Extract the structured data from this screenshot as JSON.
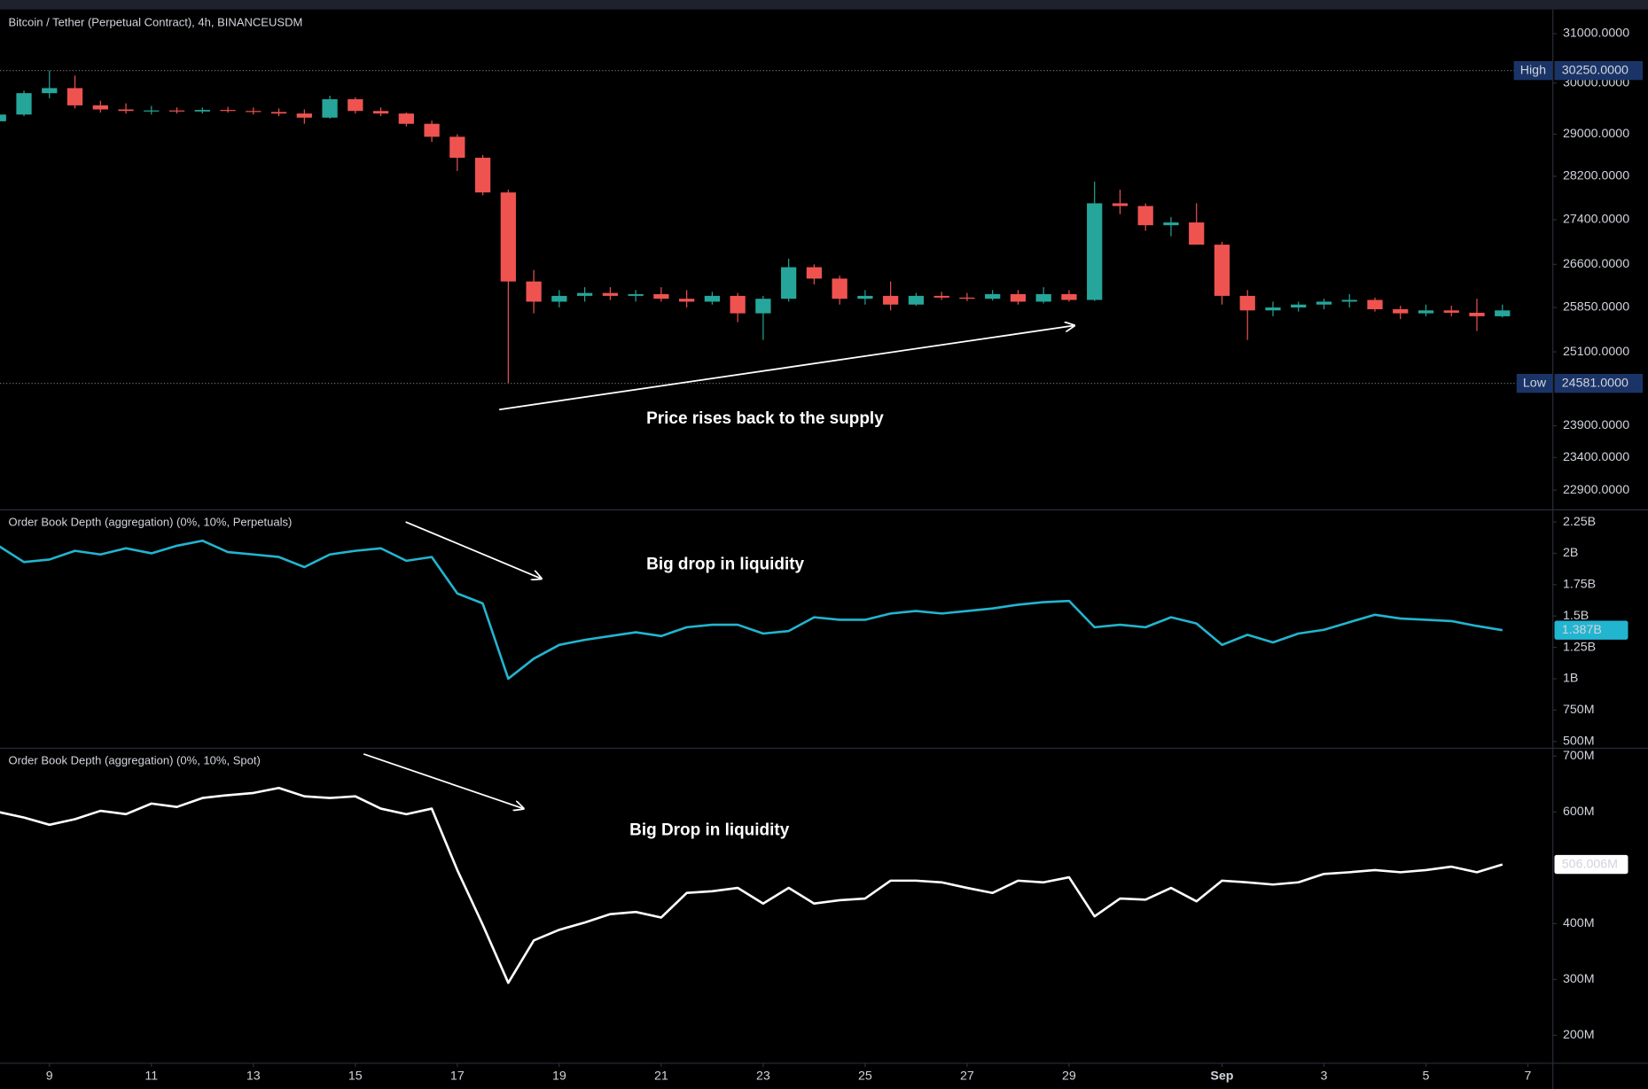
{
  "chart_data": [
    {
      "type": "candlestick",
      "title": "Bitcoin / Tether (Perpetual Contract), 4h, BINANCEUSDM",
      "annotation": "Price rises back to the supply",
      "x": [
        8,
        8.5,
        9,
        9.5,
        10,
        10.5,
        11,
        11.5,
        12,
        12.5,
        13,
        13.5,
        14,
        14.5,
        15,
        15.5,
        16,
        16.5,
        17,
        17.5,
        18,
        18.5,
        19,
        19.5,
        20,
        20.5,
        21,
        21.5,
        22,
        22.5,
        23,
        23.5,
        24,
        24.5,
        25,
        25.5,
        26,
        26.5,
        27,
        27.5,
        28,
        28.5,
        29,
        29.5,
        30,
        30.5,
        31,
        31.5,
        32,
        32.5,
        33,
        33.5,
        34,
        34.5,
        35,
        35.5,
        36,
        36.5,
        37,
        37.5
      ],
      "open": [
        29250,
        29380,
        29800,
        29900,
        29560,
        29480,
        29450,
        29460,
        29440,
        29470,
        29450,
        29430,
        29400,
        29320,
        29680,
        29450,
        29400,
        29200,
        28950,
        28550,
        27900,
        26300,
        25950,
        26050,
        26100,
        26050,
        26080,
        26000,
        25950,
        26050,
        25750,
        26000,
        26550,
        26350,
        26000,
        26050,
        25900,
        26050,
        26020,
        26000,
        26080,
        25950,
        26080,
        25980,
        27700,
        27650,
        27300,
        27350,
        26950,
        26050,
        25800,
        25850,
        25900,
        25950,
        25980,
        25820,
        25750,
        25800,
        25760,
        25700
      ],
      "high": [
        29420,
        29850,
        30250,
        30150,
        29650,
        29600,
        29550,
        29520,
        29520,
        29530,
        29520,
        29500,
        29480,
        29750,
        29720,
        29520,
        29420,
        29260,
        29000,
        28600,
        27950,
        26500,
        26150,
        26200,
        26200,
        26150,
        26200,
        26150,
        26120,
        26100,
        26050,
        26700,
        26600,
        26400,
        26150,
        26300,
        26100,
        26120,
        26100,
        26150,
        26150,
        26200,
        26150,
        28100,
        27950,
        27700,
        27450,
        27700,
        27000,
        26150,
        25950,
        25950,
        26000,
        26080,
        26020,
        25880,
        25900,
        25880,
        26000,
        25900
      ],
      "low": [
        29200,
        29350,
        29700,
        29500,
        29420,
        29400,
        29380,
        29400,
        29400,
        29420,
        29380,
        29350,
        29200,
        29300,
        29400,
        29350,
        29150,
        28850,
        28300,
        27850,
        24581,
        25750,
        25850,
        25950,
        25980,
        25950,
        25950,
        25850,
        25900,
        25600,
        25300,
        25950,
        26250,
        25900,
        25900,
        25800,
        25880,
        25980,
        25960,
        25970,
        25900,
        25920,
        25950,
        25960,
        27500,
        27200,
        27100,
        27000,
        25900,
        25300,
        25700,
        25780,
        25820,
        25850,
        25780,
        25650,
        25700,
        25700,
        25450,
        25680
      ],
      "close": [
        29380,
        29800,
        29900,
        29560,
        29480,
        29450,
        29460,
        29440,
        29470,
        29450,
        29430,
        29400,
        29320,
        29680,
        29450,
        29400,
        29200,
        28950,
        28550,
        27900,
        26300,
        25950,
        26050,
        26100,
        26050,
        26080,
        26000,
        25950,
        26050,
        25750,
        26000,
        26550,
        26350,
        26000,
        26050,
        25900,
        26050,
        26020,
        26000,
        26080,
        25950,
        26080,
        25980,
        27700,
        27650,
        27300,
        27350,
        26950,
        26050,
        25800,
        25850,
        25900,
        25950,
        25980,
        25820,
        25750,
        25800,
        25760,
        25700,
        25800
      ],
      "up_color": "#26a69a",
      "down_color": "#ef5350",
      "log": true,
      "xlim": [
        8.03,
        38.48
      ],
      "ylim": [
        22610,
        31480
      ],
      "yticks": [
        {
          "value": 31000,
          "label": "31000.0000"
        },
        {
          "value": 30000,
          "label": "30000.0000"
        },
        {
          "value": 29000,
          "label": "29000.0000"
        },
        {
          "value": 28200,
          "label": "28200.0000"
        },
        {
          "value": 27400,
          "label": "27400.0000"
        },
        {
          "value": 26600,
          "label": "26600.0000"
        },
        {
          "value": 25850,
          "label": "25850.0000"
        },
        {
          "value": 25100,
          "label": "25100.0000"
        },
        {
          "value": 23900,
          "label": "23900.0000"
        },
        {
          "value": 23400,
          "label": "23400.0000"
        },
        {
          "value": 22900,
          "label": "22900.0000"
        }
      ],
      "markers": [
        {
          "name": "High",
          "value": 30250,
          "value_label": "30250.0000"
        },
        {
          "name": "Low",
          "value": 24581,
          "value_label": "24581.0000"
        }
      ]
    },
    {
      "type": "line",
      "title": "Order Book Depth (aggregation) (0%, 10%, Perpetuals)",
      "annotation": "Big drop in liquidity",
      "color": "#22b5d0",
      "x": [
        8,
        8.5,
        9,
        9.5,
        10,
        10.5,
        11,
        11.5,
        12,
        12.5,
        13,
        13.5,
        14,
        14.5,
        15,
        15.5,
        16,
        16.5,
        17,
        17.5,
        18,
        18.5,
        19,
        19.5,
        20,
        20.5,
        21,
        21.5,
        22,
        22.5,
        23,
        23.5,
        24,
        24.5,
        25,
        25.5,
        26,
        26.5,
        27,
        27.5,
        28,
        28.5,
        29,
        29.5,
        30,
        30.5,
        31,
        31.5,
        32,
        32.5,
        33,
        33.5,
        34,
        34.5,
        35,
        35.5,
        36,
        36.5,
        37,
        37.5
      ],
      "values": [
        2060000000,
        1930000000,
        1950000000,
        2020000000,
        1990000000,
        2040000000,
        2000000000,
        2060000000,
        2100000000,
        2010000000,
        1990000000,
        1970000000,
        1890000000,
        1990000000,
        2020000000,
        2040000000,
        1940000000,
        1970000000,
        1680000000,
        1600000000,
        1000000000,
        1160000000,
        1270000000,
        1310000000,
        1340000000,
        1370000000,
        1340000000,
        1410000000,
        1430000000,
        1430000000,
        1360000000,
        1380000000,
        1490000000,
        1470000000,
        1470000000,
        1520000000,
        1540000000,
        1520000000,
        1540000000,
        1560000000,
        1590000000,
        1610000000,
        1620000000,
        1410000000,
        1430000000,
        1410000000,
        1490000000,
        1440000000,
        1270000000,
        1350000000,
        1290000000,
        1360000000,
        1390000000,
        1450000000,
        1510000000,
        1480000000,
        1470000000,
        1460000000,
        1420000000,
        1387000000
      ],
      "last_label": {
        "value": 1387000000,
        "label": "1.387B"
      },
      "xlim": [
        8.03,
        38.48
      ],
      "ylim": [
        450000000,
        2342000000
      ],
      "yticks": [
        {
          "value": 2250000000,
          "label": "2.25B"
        },
        {
          "value": 2000000000,
          "label": "2B"
        },
        {
          "value": 1750000000,
          "label": "1.75B"
        },
        {
          "value": 1500000000,
          "label": "1.5B"
        },
        {
          "value": 1250000000,
          "label": "1.25B"
        },
        {
          "value": 1000000000,
          "label": "1B"
        },
        {
          "value": 750000000,
          "label": "750M"
        },
        {
          "value": 500000000,
          "label": "500M"
        }
      ]
    },
    {
      "type": "line",
      "title": "Order Book Depth (aggregation) (0%, 10%, Spot)",
      "annotation": "Big Drop in liquidity",
      "color": "#ffffff",
      "x": [
        8,
        8.5,
        9,
        9.5,
        10,
        10.5,
        11,
        11.5,
        12,
        12.5,
        13,
        13.5,
        14,
        14.5,
        15,
        15.5,
        16,
        16.5,
        17,
        17.5,
        18,
        18.5,
        19,
        19.5,
        20,
        20.5,
        21,
        21.5,
        22,
        22.5,
        23,
        23.5,
        24,
        24.5,
        25,
        25.5,
        26,
        26.5,
        27,
        27.5,
        28,
        28.5,
        29,
        29.5,
        30,
        30.5,
        31,
        31.5,
        32,
        32.5,
        33,
        33.5,
        34,
        34.5,
        35,
        35.5,
        36,
        36.5,
        37,
        37.5
      ],
      "values": [
        600000000,
        590000000,
        577000000,
        587000000,
        602000000,
        596000000,
        615000000,
        609000000,
        625000000,
        630000000,
        634000000,
        643000000,
        628000000,
        625000000,
        628000000,
        606000000,
        596000000,
        606000000,
        496000000,
        398000000,
        294000000,
        370000000,
        389000000,
        402000000,
        417000000,
        421000000,
        411000000,
        455000000,
        458000000,
        464000000,
        436000000,
        464000000,
        436000000,
        442000000,
        445000000,
        477000000,
        477000000,
        474000000,
        464000000,
        455000000,
        477000000,
        474000000,
        483000000,
        413000000,
        445000000,
        443000000,
        464000000,
        440000000,
        477000000,
        474000000,
        470000000,
        474000000,
        489000000,
        492000000,
        496000000,
        492000000,
        496000000,
        502000000,
        492000000,
        506006000
      ],
      "last_label": {
        "value": 506006000,
        "label": "506.006M"
      },
      "xlim": [
        8.03,
        38.48
      ],
      "ylim": [
        150900000,
        713200000
      ],
      "yticks": [
        {
          "value": 700000000,
          "label": "700M"
        },
        {
          "value": 600000000,
          "label": "600M"
        },
        {
          "value": 400000000,
          "label": "400M"
        },
        {
          "value": 300000000,
          "label": "300M"
        },
        {
          "value": 200000000,
          "label": "200M"
        }
      ],
      "xticks": [
        9,
        11,
        13,
        15,
        17,
        19,
        21,
        23,
        25,
        27,
        29,
        {
          "value": 32,
          "label": "Sep"
        },
        {
          "value": 34,
          "label": "3"
        },
        {
          "value": 36,
          "label": "5"
        },
        {
          "value": 38,
          "label": "7"
        }
      ]
    }
  ]
}
